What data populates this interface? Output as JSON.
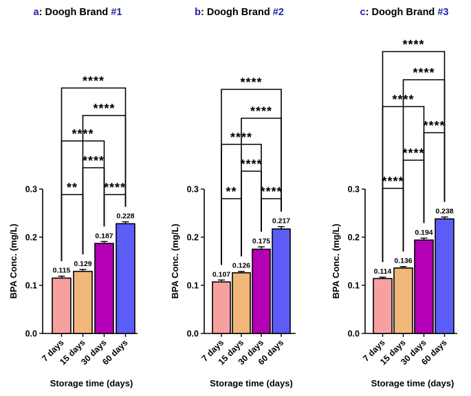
{
  "figure": {
    "panel_letter_color": "#1f1fa8",
    "bar_colors": [
      "#f7a0a0",
      "#f0b67a",
      "#b400b4",
      "#5c5cf7"
    ]
  },
  "chart_data": [
    {
      "type": "bar",
      "title_letter": "a",
      "title_text": ": Doogh Brand ",
      "title_num": "#1",
      "categories": [
        "7 days",
        "15 days",
        "30 days",
        "60 days"
      ],
      "values": [
        0.115,
        0.129,
        0.187,
        0.228
      ],
      "value_labels": [
        "0.115",
        "0.129",
        "0.187",
        "0.228"
      ],
      "errors": [
        0.004,
        0.004,
        0.004,
        0.004
      ],
      "ylabel": "BPA Conc. (mg/L)",
      "xlabel": "Storage time (days)",
      "ylim": [
        0,
        0.3
      ],
      "yticks": [
        "0.0",
        "0.1",
        "0.2",
        "0.3"
      ],
      "comparisons": [
        {
          "pair": [
            0,
            1
          ],
          "label": "**"
        },
        {
          "pair": [
            2,
            3
          ],
          "label": "****"
        },
        {
          "pair": [
            1,
            2
          ],
          "label": "****"
        },
        {
          "pair": [
            0,
            2
          ],
          "label": "****"
        },
        {
          "pair": [
            1,
            3
          ],
          "label": "****"
        },
        {
          "pair": [
            0,
            3
          ],
          "label": "****"
        }
      ]
    },
    {
      "type": "bar",
      "title_letter": "b",
      "title_text": ": Doogh Brand ",
      "title_num": "#2",
      "categories": [
        "7 days",
        "15 days",
        "30 days",
        "60 days"
      ],
      "values": [
        0.107,
        0.126,
        0.175,
        0.217
      ],
      "value_labels": [
        "0.107",
        "0.126",
        "0.175",
        "0.217"
      ],
      "errors": [
        0.004,
        0.003,
        0.005,
        0.005
      ],
      "ylabel": "BPA Conc. (mg/L)",
      "xlabel": "Storage time (days)",
      "ylim": [
        0,
        0.3
      ],
      "yticks": [
        "0.0",
        "0.1",
        "0.2",
        "0.3"
      ],
      "comparisons": [
        {
          "pair": [
            0,
            1
          ],
          "label": "**"
        },
        {
          "pair": [
            2,
            3
          ],
          "label": "****"
        },
        {
          "pair": [
            1,
            2
          ],
          "label": "****"
        },
        {
          "pair": [
            0,
            2
          ],
          "label": "****"
        },
        {
          "pair": [
            1,
            3
          ],
          "label": "****"
        },
        {
          "pair": [
            0,
            3
          ],
          "label": "****"
        }
      ]
    },
    {
      "type": "bar",
      "title_letter": "c",
      "title_text": ": Doogh Brand ",
      "title_num": "#3",
      "categories": [
        "7 days",
        "15 days",
        "30 days",
        "60 days"
      ],
      "values": [
        0.114,
        0.136,
        0.194,
        0.238
      ],
      "value_labels": [
        "0.114",
        "0.136",
        "0.194",
        "0.238"
      ],
      "errors": [
        0.003,
        0.003,
        0.004,
        0.004
      ],
      "ylabel": "BPA Conc. (mg/L)",
      "xlabel": "Storage time (days)",
      "ylim": [
        0,
        0.3
      ],
      "yticks": [
        "0.0",
        "0.1",
        "0.2",
        "0.3"
      ],
      "comparisons": [
        {
          "pair": [
            0,
            1
          ],
          "label": "****"
        },
        {
          "pair": [
            1,
            2
          ],
          "label": "****"
        },
        {
          "pair": [
            2,
            3
          ],
          "label": "****"
        },
        {
          "pair": [
            0,
            2
          ],
          "label": "****"
        },
        {
          "pair": [
            1,
            3
          ],
          "label": "****"
        },
        {
          "pair": [
            0,
            3
          ],
          "label": "****"
        }
      ]
    }
  ]
}
